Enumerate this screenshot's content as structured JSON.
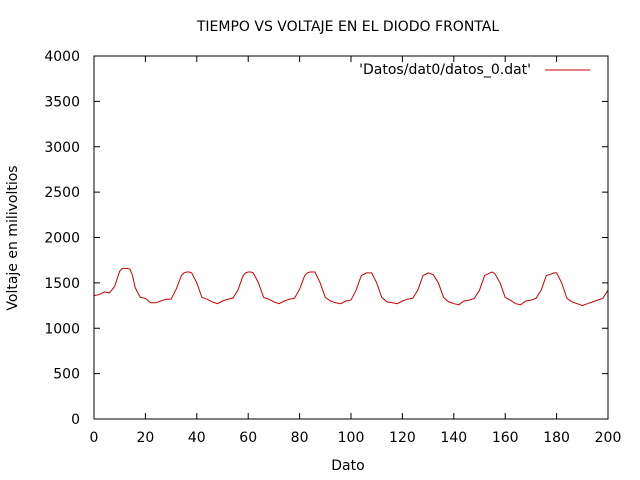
{
  "chart_data": {
    "type": "line",
    "title": "TIEMPO VS VOLTAJE EN EL DIODO FRONTAL",
    "xlabel": "Dato",
    "ylabel": "Voltaje en milivoltios",
    "xlim": [
      0,
      200
    ],
    "ylim": [
      0,
      4000
    ],
    "xticks": [
      0,
      20,
      40,
      60,
      80,
      100,
      120,
      140,
      160,
      180,
      200
    ],
    "yticks": [
      0,
      500,
      1000,
      1500,
      2000,
      2500,
      3000,
      3500,
      4000
    ],
    "grid": false,
    "legend_position": "top-right",
    "series": [
      {
        "name": "'Datos/dat0/datos_0.dat'",
        "color": "#cc0000",
        "x": [
          0,
          2,
          4,
          6,
          8,
          10,
          11,
          12,
          13,
          14,
          15,
          16,
          18,
          20,
          22,
          24,
          26,
          28,
          30,
          32,
          34,
          35,
          36,
          37,
          38,
          40,
          42,
          44,
          46,
          48,
          50,
          52,
          54,
          56,
          58,
          59,
          60,
          61,
          62,
          64,
          66,
          68,
          70,
          72,
          74,
          76,
          78,
          80,
          82,
          83,
          84,
          86,
          88,
          90,
          92,
          94,
          96,
          98,
          100,
          102,
          104,
          106,
          107,
          108,
          110,
          112,
          114,
          116,
          118,
          120,
          122,
          124,
          126,
          128,
          130,
          131,
          132,
          134,
          136,
          138,
          140,
          142,
          144,
          146,
          148,
          150,
          152,
          154,
          155,
          156,
          158,
          160,
          162,
          164,
          166,
          168,
          170,
          172,
          174,
          176,
          178,
          179,
          180,
          182,
          184,
          186,
          188,
          190,
          192,
          194,
          196,
          198,
          200
        ],
        "y": [
          1360,
          1370,
          1400,
          1390,
          1460,
          1630,
          1660,
          1660,
          1660,
          1650,
          1580,
          1450,
          1340,
          1330,
          1280,
          1280,
          1300,
          1320,
          1320,
          1430,
          1580,
          1610,
          1620,
          1620,
          1610,
          1500,
          1340,
          1320,
          1290,
          1270,
          1300,
          1320,
          1330,
          1420,
          1580,
          1610,
          1620,
          1620,
          1610,
          1500,
          1340,
          1320,
          1290,
          1270,
          1300,
          1320,
          1330,
          1430,
          1580,
          1610,
          1620,
          1620,
          1500,
          1340,
          1300,
          1280,
          1270,
          1300,
          1310,
          1420,
          1580,
          1610,
          1610,
          1610,
          1500,
          1340,
          1290,
          1280,
          1270,
          1300,
          1320,
          1330,
          1420,
          1580,
          1610,
          1600,
          1590,
          1500,
          1340,
          1290,
          1270,
          1260,
          1300,
          1310,
          1330,
          1420,
          1580,
          1610,
          1620,
          1600,
          1500,
          1340,
          1310,
          1270,
          1260,
          1300,
          1310,
          1330,
          1420,
          1580,
          1600,
          1610,
          1610,
          1500,
          1330,
          1290,
          1270,
          1250,
          1270,
          1290,
          1310,
          1330,
          1420
        ]
      }
    ]
  }
}
